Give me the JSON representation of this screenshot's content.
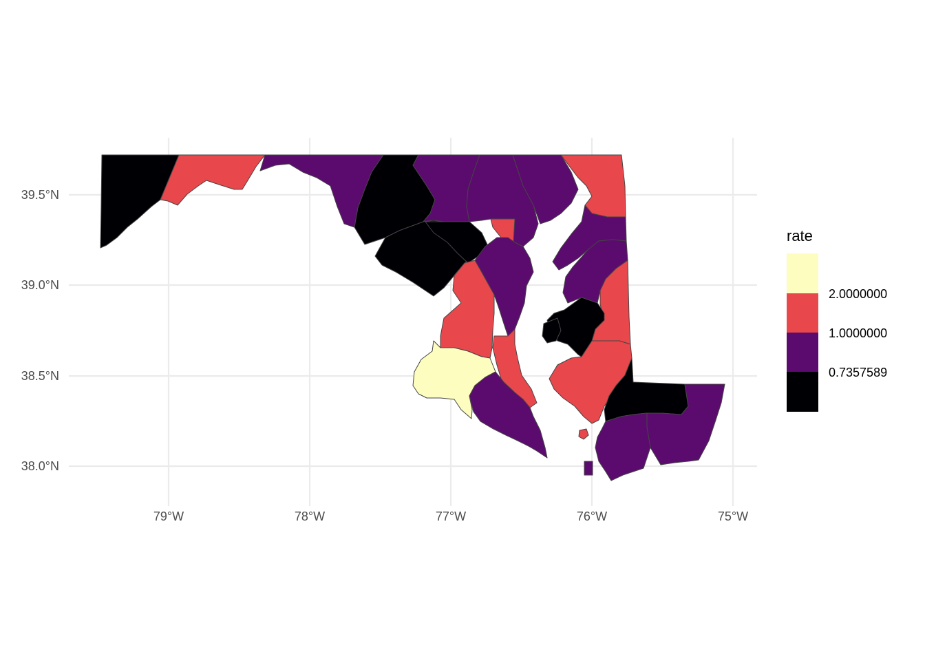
{
  "map": {
    "x_ticks": [
      "79°W",
      "78°W",
      "77°W",
      "76°W",
      "75°W"
    ],
    "y_ticks": [
      "39.5°N",
      "39.0°N",
      "38.5°N",
      "38.0°N"
    ]
  },
  "legend": {
    "title": "rate",
    "bins": [
      {
        "color": "#FCFDBF",
        "label": ""
      },
      {
        "color": "#E8474C",
        "label": "2.0000000"
      },
      {
        "color": "#5B0B6E",
        "label": "1.0000000"
      },
      {
        "color": "#000004",
        "label": "0.7357589"
      }
    ]
  },
  "colors": {
    "black": "#000004",
    "purple": "#5B0B6E",
    "red": "#E8474C",
    "yellow": "#FCFDBF"
  }
}
